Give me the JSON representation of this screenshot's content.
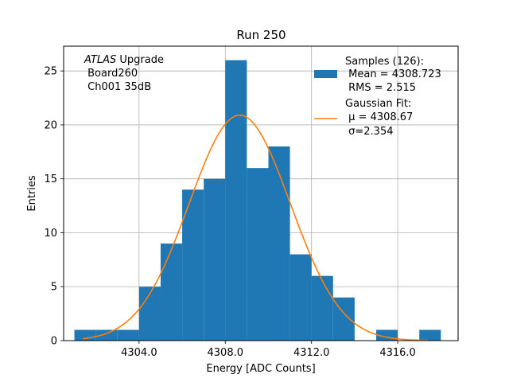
{
  "chart_data": {
    "type": "bar",
    "title": "Run 250",
    "xlabel": "Energy [ADC Counts]",
    "ylabel": "Entries",
    "xlim": [
      4300.5,
      4318.8
    ],
    "ylim": [
      0,
      27.3
    ],
    "xticks": [
      4304,
      4308,
      4312,
      4316
    ],
    "xtick_labels": [
      "4304.0",
      "4308.0",
      "4312.0",
      "4316.0"
    ],
    "yticks": [
      0,
      5,
      10,
      15,
      20,
      25
    ],
    "ytick_labels": [
      "0",
      "5",
      "10",
      "15",
      "20",
      "25"
    ],
    "grid": true,
    "bins": [
      {
        "left": 4301.0,
        "right": 4302.0,
        "count": 1
      },
      {
        "left": 4302.0,
        "right": 4303.0,
        "count": 1
      },
      {
        "left": 4303.0,
        "right": 4304.0,
        "count": 1
      },
      {
        "left": 4304.0,
        "right": 4305.0,
        "count": 5
      },
      {
        "left": 4305.0,
        "right": 4306.0,
        "count": 9
      },
      {
        "left": 4306.0,
        "right": 4307.0,
        "count": 14
      },
      {
        "left": 4307.0,
        "right": 4308.0,
        "count": 15
      },
      {
        "left": 4308.0,
        "right": 4309.0,
        "count": 26
      },
      {
        "left": 4309.0,
        "right": 4310.0,
        "count": 16
      },
      {
        "left": 4310.0,
        "right": 4311.0,
        "count": 18
      },
      {
        "left": 4311.0,
        "right": 4312.0,
        "count": 8
      },
      {
        "left": 4312.0,
        "right": 4313.0,
        "count": 6
      },
      {
        "left": 4313.0,
        "right": 4314.0,
        "count": 4
      },
      {
        "left": 4315.0,
        "right": 4316.0,
        "count": 1
      },
      {
        "left": 4317.0,
        "right": 4318.0,
        "count": 1
      }
    ],
    "fit": {
      "type": "gaussian",
      "amplitude": 20.9,
      "mu": 4308.67,
      "sigma": 2.354,
      "x_range": [
        4301.4,
        4317.4
      ]
    },
    "colors": {
      "hist": "#1f77b4",
      "fit": "#ff7f0e",
      "grid": "#b0b0b0"
    },
    "annotation": {
      "line1_italic": "ATLAS",
      "line1_rest": " Upgrade",
      "line2": " Board260",
      "line3": " Ch001 35dB"
    },
    "legend": {
      "position": "top-right",
      "hist_lines": [
        "Samples (126):",
        " Mean = 4308.723",
        " RMS = 2.515"
      ],
      "fit_lines": [
        "Gaussian Fit:",
        " μ = 4308.67",
        " σ=2.354"
      ]
    }
  }
}
